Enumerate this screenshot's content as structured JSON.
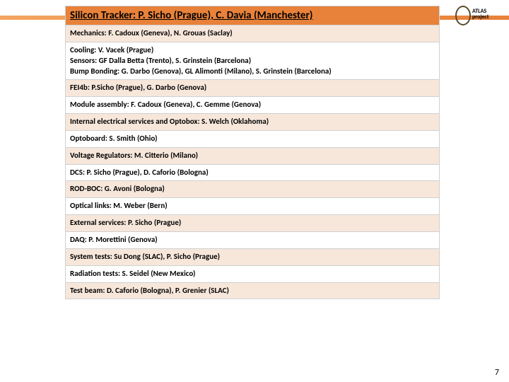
{
  "title": "Silicon Tracker: P. Sicho (Prague), C. Davia (Manchester)",
  "logo": {
    "name": "ATLAS",
    "sub": "project"
  },
  "rows": [
    {
      "lines": [
        "Mechanics: F. Cadoux (Geneva), N. Grouas (Saclay)"
      ]
    },
    {
      "lines": [
        "Cooling: V. Vacek (Prague)",
        "Sensors: GF Dalla Betta (Trento), S. Grinstein (Barcelona)",
        "Bump Bonding: G. Darbo (Genova), GL Alimonti (Milano), S. Grinstein (Barcelona)"
      ]
    },
    {
      "lines": [
        "FEI4b: P.Sicho (Prague), G. Darbo (Genova)"
      ]
    },
    {
      "lines": [
        "Module assembly: F. Cadoux (Geneva), C. Gemme (Genova)"
      ]
    },
    {
      "lines": [
        "Internal electrical services and Optobox: S. Welch (Oklahoma)"
      ]
    },
    {
      "lines": [
        "Optoboard: S. Smith (Ohio)"
      ]
    },
    {
      "lines": [
        "Voltage Regulators: M. Citterio (Milano)"
      ]
    },
    {
      "lines": [
        "DCS: P. Sicho (Prague), D. Caforio (Bologna)"
      ]
    },
    {
      "lines": [
        "ROD-BOC: G. Avoni (Bologna)"
      ]
    },
    {
      "lines": [
        "Optical links: M. Weber (Bern)"
      ]
    },
    {
      "lines": [
        "External services: P. Sicho (Prague)"
      ]
    },
    {
      "lines": [
        "DAQ: P. Morettini (Genova)"
      ]
    },
    {
      "lines": [
        "System tests: Su Dong (SLAC), P. Sicho (Prague)"
      ]
    },
    {
      "lines": [
        "Radiation tests: S. Seidel (New Mexico)"
      ]
    },
    {
      "lines": [
        "Test beam: D. Caforio (Bologna), P. Grenier (SLAC)"
      ]
    }
  ],
  "page_number": "7",
  "colors": {
    "accent": "#e8823a",
    "row_shade": "#f7e7db",
    "row_plain": "#ffffff",
    "border": "#d0d0d0"
  }
}
